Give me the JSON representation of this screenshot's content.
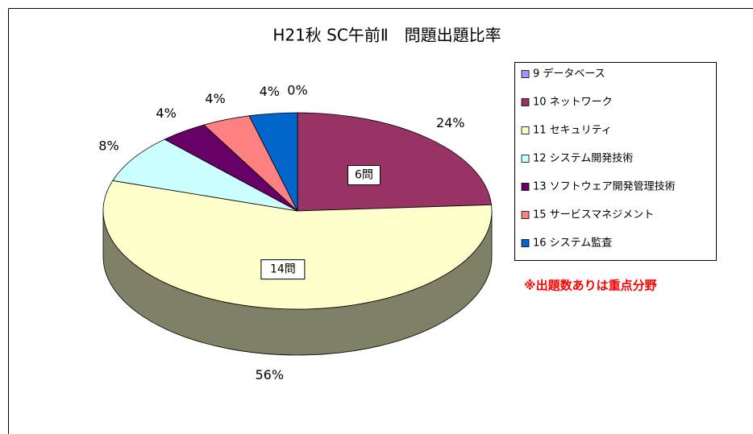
{
  "chart_data": {
    "type": "pie",
    "title": "H21秋 SC午前Ⅱ　問題出題比率",
    "categories": [
      "9 データベース",
      "10 ネットワーク",
      "11 セキュリティ",
      "12 システム開発技術",
      "13 ソフトウェア開発管理技術",
      "15 サービスマネジメント",
      "16 システム監査"
    ],
    "values": [
      0,
      24,
      56,
      8,
      4,
      4,
      4
    ],
    "value_labels": [
      "0%",
      "24%",
      "56%",
      "8%",
      "4%",
      "4%",
      "4%"
    ],
    "count_labels": [
      null,
      "6問",
      "14問",
      null,
      null,
      null,
      null
    ],
    "colors": [
      "#9999ff",
      "#993366",
      "#ffffcc",
      "#ccffff",
      "#660066",
      "#ff8080",
      "#0066cc"
    ],
    "legend": "right",
    "annotation": "※出題数ありは重点分野"
  }
}
